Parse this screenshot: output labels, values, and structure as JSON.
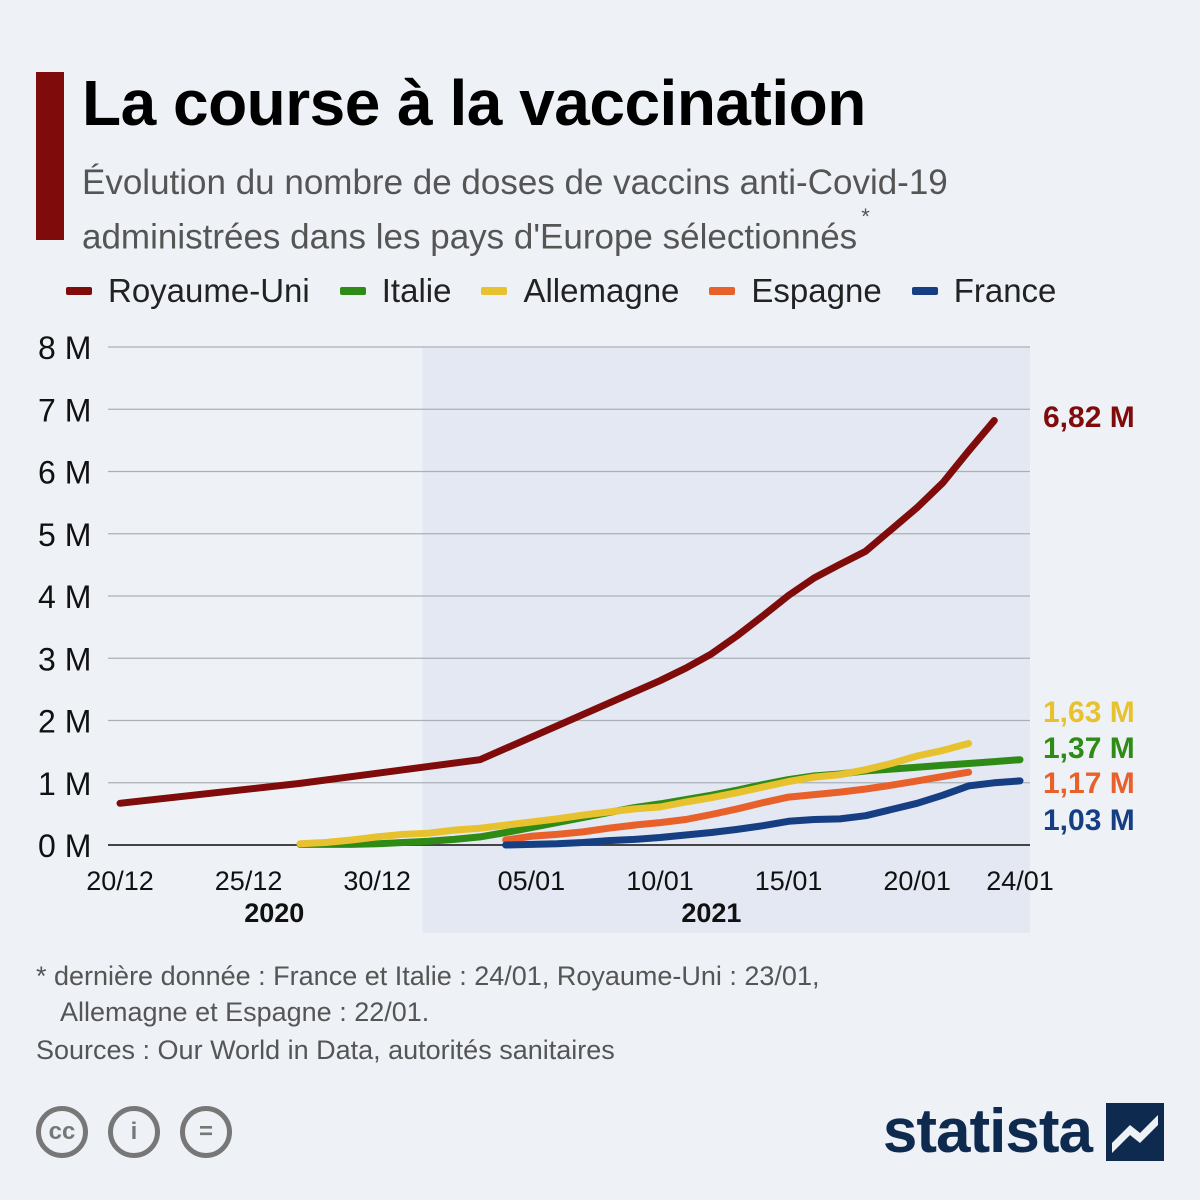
{
  "header": {
    "title": "La course à la vaccination",
    "subtitle": "Évolution du nombre de doses de vaccins anti-Covid-19 administrées dans les pays d'Europe sélectionnés",
    "subtitle_marker": "*"
  },
  "colors": {
    "accent": "#7f0b0b",
    "plot_band": "#e3e8f2",
    "brand": "#0e2a4f"
  },
  "chart_data": {
    "type": "line",
    "title": "La course à la vaccination",
    "xlabel": "",
    "ylabel": "",
    "x_range": [
      "2020-12-20",
      "2021-01-24"
    ],
    "x_ticks": [
      {
        "date": "2020-12-20",
        "label": "20/12"
      },
      {
        "date": "2020-12-25",
        "label": "25/12"
      },
      {
        "date": "2020-12-30",
        "label": "30/12"
      },
      {
        "date": "2021-01-05",
        "label": "05/01"
      },
      {
        "date": "2021-01-10",
        "label": "10/01"
      },
      {
        "date": "2021-01-15",
        "label": "15/01"
      },
      {
        "date": "2021-01-20",
        "label": "20/01"
      },
      {
        "date": "2021-01-24",
        "label": "24/01"
      }
    ],
    "year_labels": [
      {
        "date": "2020-12-26",
        "label": "2020"
      },
      {
        "date": "2021-01-12",
        "label": "2021"
      }
    ],
    "shaded_period": [
      "2021-01-01",
      "2021-01-24"
    ],
    "ylim": [
      0,
      8
    ],
    "y_unit": "M",
    "y_ticks": [
      {
        "value": 0,
        "label": "0 M"
      },
      {
        "value": 1,
        "label": "1 M"
      },
      {
        "value": 2,
        "label": "2 M"
      },
      {
        "value": 3,
        "label": "3 M"
      },
      {
        "value": 4,
        "label": "4 M"
      },
      {
        "value": 5,
        "label": "5 M"
      },
      {
        "value": 6,
        "label": "6 M"
      },
      {
        "value": 7,
        "label": "7 M"
      },
      {
        "value": 8,
        "label": "8 M"
      }
    ],
    "grid": true,
    "legend_position": "top",
    "series": [
      {
        "name": "Royaume-Uni",
        "color": "#7f0b0b",
        "end_label": "6,82 M",
        "points": [
          [
            "2020-12-20",
            0.67
          ],
          [
            "2020-12-27",
            0.99
          ],
          [
            "2021-01-03",
            1.37
          ],
          [
            "2021-01-10",
            2.64
          ],
          [
            "2021-01-11",
            2.84
          ],
          [
            "2021-01-12",
            3.07
          ],
          [
            "2021-01-13",
            3.36
          ],
          [
            "2021-01-14",
            3.68
          ],
          [
            "2021-01-15",
            4.01
          ],
          [
            "2021-01-16",
            4.29
          ],
          [
            "2021-01-17",
            4.51
          ],
          [
            "2021-01-18",
            4.72
          ],
          [
            "2021-01-19",
            5.07
          ],
          [
            "2021-01-20",
            5.42
          ],
          [
            "2021-01-21",
            5.82
          ],
          [
            "2021-01-22",
            6.33
          ],
          [
            "2021-01-23",
            6.82
          ]
        ]
      },
      {
        "name": "Italie",
        "color": "#2e8b16",
        "end_label": "1,37 M",
        "points": [
          [
            "2020-12-27",
            0.01
          ],
          [
            "2020-12-28",
            0.01
          ],
          [
            "2020-12-29",
            0.01
          ],
          [
            "2020-12-30",
            0.02
          ],
          [
            "2020-12-31",
            0.04
          ],
          [
            "2021-01-01",
            0.06
          ],
          [
            "2021-01-02",
            0.09
          ],
          [
            "2021-01-03",
            0.13
          ],
          [
            "2021-01-04",
            0.2
          ],
          [
            "2021-01-05",
            0.28
          ],
          [
            "2021-01-06",
            0.36
          ],
          [
            "2021-01-07",
            0.44
          ],
          [
            "2021-01-08",
            0.52
          ],
          [
            "2021-01-09",
            0.6
          ],
          [
            "2021-01-10",
            0.66
          ],
          [
            "2021-01-11",
            0.73
          ],
          [
            "2021-01-12",
            0.8
          ],
          [
            "2021-01-13",
            0.88
          ],
          [
            "2021-01-14",
            0.97
          ],
          [
            "2021-01-15",
            1.05
          ],
          [
            "2021-01-16",
            1.11
          ],
          [
            "2021-01-17",
            1.14
          ],
          [
            "2021-01-18",
            1.19
          ],
          [
            "2021-01-19",
            1.22
          ],
          [
            "2021-01-20",
            1.25
          ],
          [
            "2021-01-21",
            1.28
          ],
          [
            "2021-01-22",
            1.31
          ],
          [
            "2021-01-23",
            1.34
          ],
          [
            "2021-01-24",
            1.37
          ]
        ]
      },
      {
        "name": "Allemagne",
        "color": "#e8c22e",
        "end_label": "1,63 M",
        "points": [
          [
            "2020-12-27",
            0.02
          ],
          [
            "2020-12-28",
            0.04
          ],
          [
            "2020-12-29",
            0.08
          ],
          [
            "2020-12-30",
            0.13
          ],
          [
            "2020-12-31",
            0.17
          ],
          [
            "2021-01-01",
            0.19
          ],
          [
            "2021-01-02",
            0.24
          ],
          [
            "2021-01-03",
            0.27
          ],
          [
            "2021-01-04",
            0.32
          ],
          [
            "2021-01-05",
            0.37
          ],
          [
            "2021-01-06",
            0.42
          ],
          [
            "2021-01-07",
            0.48
          ],
          [
            "2021-01-08",
            0.53
          ],
          [
            "2021-01-09",
            0.58
          ],
          [
            "2021-01-10",
            0.61
          ],
          [
            "2021-01-11",
            0.69
          ],
          [
            "2021-01-12",
            0.76
          ],
          [
            "2021-01-13",
            0.84
          ],
          [
            "2021-01-14",
            0.93
          ],
          [
            "2021-01-15",
            1.02
          ],
          [
            "2021-01-16",
            1.09
          ],
          [
            "2021-01-17",
            1.13
          ],
          [
            "2021-01-18",
            1.21
          ],
          [
            "2021-01-19",
            1.31
          ],
          [
            "2021-01-20",
            1.43
          ],
          [
            "2021-01-21",
            1.52
          ],
          [
            "2021-01-22",
            1.63
          ]
        ]
      },
      {
        "name": "Espagne",
        "color": "#e8602a",
        "end_label": "1,17 M",
        "points": [
          [
            "2021-01-04",
            0.08
          ],
          [
            "2021-01-05",
            0.14
          ],
          [
            "2021-01-06",
            0.17
          ],
          [
            "2021-01-07",
            0.21
          ],
          [
            "2021-01-08",
            0.27
          ],
          [
            "2021-01-09",
            0.32
          ],
          [
            "2021-01-10",
            0.36
          ],
          [
            "2021-01-11",
            0.41
          ],
          [
            "2021-01-12",
            0.49
          ],
          [
            "2021-01-13",
            0.58
          ],
          [
            "2021-01-14",
            0.68
          ],
          [
            "2021-01-15",
            0.77
          ],
          [
            "2021-01-16",
            0.81
          ],
          [
            "2021-01-17",
            0.85
          ],
          [
            "2021-01-18",
            0.9
          ],
          [
            "2021-01-19",
            0.96
          ],
          [
            "2021-01-20",
            1.03
          ],
          [
            "2021-01-21",
            1.1
          ],
          [
            "2021-01-22",
            1.17
          ]
        ]
      },
      {
        "name": "France",
        "color": "#163e82",
        "end_label": "1,03 M",
        "points": [
          [
            "2021-01-04",
            0.0
          ],
          [
            "2021-01-05",
            0.01
          ],
          [
            "2021-01-06",
            0.02
          ],
          [
            "2021-01-07",
            0.04
          ],
          [
            "2021-01-08",
            0.07
          ],
          [
            "2021-01-09",
            0.09
          ],
          [
            "2021-01-10",
            0.12
          ],
          [
            "2021-01-11",
            0.16
          ],
          [
            "2021-01-12",
            0.2
          ],
          [
            "2021-01-13",
            0.25
          ],
          [
            "2021-01-14",
            0.31
          ],
          [
            "2021-01-15",
            0.38
          ],
          [
            "2021-01-16",
            0.41
          ],
          [
            "2021-01-17",
            0.42
          ],
          [
            "2021-01-18",
            0.47
          ],
          [
            "2021-01-19",
            0.57
          ],
          [
            "2021-01-20",
            0.67
          ],
          [
            "2021-01-21",
            0.8
          ],
          [
            "2021-01-22",
            0.95
          ],
          [
            "2021-01-23",
            1.0
          ],
          [
            "2021-01-24",
            1.03
          ]
        ]
      }
    ]
  },
  "footer": {
    "footnote_line1": "* dernière donnée : France et Italie : 24/01, Royaume-Uni : 23/01,",
    "footnote_line2": "Allemagne et Espagne : 22/01.",
    "sources": "Sources : Our World in Data, autorités sanitaires",
    "license_icons": [
      "cc-icon",
      "attribution-icon",
      "no-derivatives-icon"
    ],
    "license_symbols": [
      "cc",
      "i",
      "="
    ],
    "brand": "statista"
  }
}
